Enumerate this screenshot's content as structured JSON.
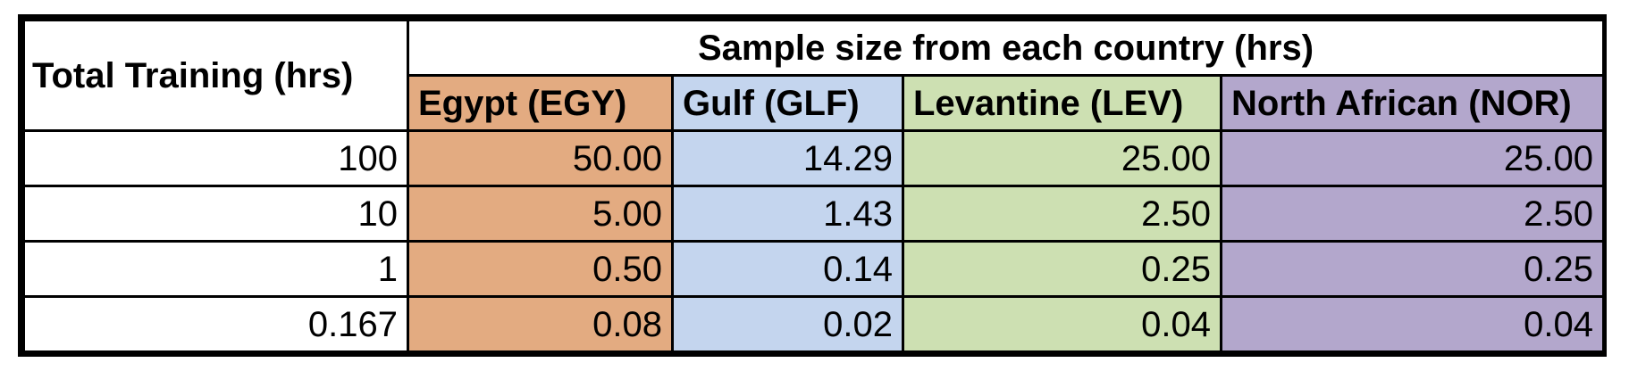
{
  "table": {
    "corner_header": "Total Training (hrs)",
    "group_header": "Sample size from each country (hrs)",
    "columns": [
      {
        "label": "Egypt (EGY)",
        "color": "#e3ab81"
      },
      {
        "label": "Gulf (GLF)",
        "color": "#c4d5ee"
      },
      {
        "label": "Levantine (LEV)",
        "color": "#cde0b2"
      },
      {
        "label": "North African (NOR)",
        "color": "#b3a7cc"
      }
    ],
    "rows": [
      {
        "total": "100",
        "values": [
          "50.00",
          "14.29",
          "25.00",
          "25.00"
        ]
      },
      {
        "total": "10",
        "values": [
          "5.00",
          "1.43",
          "2.50",
          "2.50"
        ]
      },
      {
        "total": "1",
        "values": [
          "0.50",
          "0.14",
          "0.25",
          "0.25"
        ]
      },
      {
        "total": "0.167",
        "values": [
          "0.08",
          "0.02",
          "0.04",
          "0.04"
        ]
      }
    ]
  }
}
